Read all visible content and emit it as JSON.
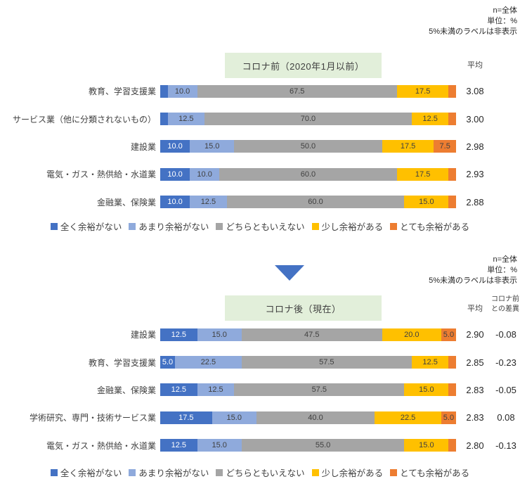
{
  "meta_notes": {
    "n": "n=全体",
    "unit": "単位：%",
    "label_rule": "5%未満のラベルは非表示"
  },
  "legend_items": [
    {
      "label": "全く余裕がない",
      "color": "#4472C4"
    },
    {
      "label": "あまり余裕がない",
      "color": "#8FAADC"
    },
    {
      "label": "どちらともいえない",
      "color": "#A5A5A5"
    },
    {
      "label": "少し余裕がある",
      "color": "#FFC000"
    },
    {
      "label": "とても余裕がある",
      "color": "#ED7D31"
    }
  ],
  "arrow_color": "#4472C4",
  "title_box_bg": "#E2EFDA",
  "label_visibility_threshold": 5,
  "chart_data": [
    {
      "type": "bar",
      "stacked": true,
      "orientation": "horizontal",
      "title": "コロナ前（2020年1月以前）",
      "avg_header": "平均",
      "unit": "%",
      "xlim": [
        0,
        100
      ],
      "series_names": [
        "全く余裕がない",
        "あまり余裕がない",
        "どちらともいえない",
        "少し余裕がある",
        "とても余裕がある"
      ],
      "rows": [
        {
          "category": "教育、学習支援業",
          "values": [
            2.5,
            10.0,
            67.5,
            17.5,
            2.5
          ],
          "average": "3.08"
        },
        {
          "category": "サービス業（他に分類されないもの）",
          "values": [
            2.5,
            12.5,
            70.0,
            12.5,
            2.5
          ],
          "average": "3.00"
        },
        {
          "category": "建設業",
          "values": [
            10.0,
            15.0,
            50.0,
            17.5,
            7.5
          ],
          "average": "2.98"
        },
        {
          "category": "電気・ガス・熱供給・水道業",
          "values": [
            10.0,
            10.0,
            60.0,
            17.5,
            2.5
          ],
          "average": "2.93"
        },
        {
          "category": "金融業、保険業",
          "values": [
            10.0,
            12.5,
            60.0,
            15.0,
            2.5
          ],
          "average": "2.88"
        }
      ]
    },
    {
      "type": "bar",
      "stacked": true,
      "orientation": "horizontal",
      "title": "コロナ後（現在）",
      "avg_header": "平均",
      "diff_header_line1": "コロナ前",
      "diff_header_line2": "との差異",
      "unit": "%",
      "xlim": [
        0,
        100
      ],
      "series_names": [
        "全く余裕がない",
        "あまり余裕がない",
        "どちらともいえない",
        "少し余裕がある",
        "とても余裕がある"
      ],
      "rows": [
        {
          "category": "建設業",
          "values": [
            12.5,
            15.0,
            47.5,
            20.0,
            5.0
          ],
          "average": "2.90",
          "diff": "-0.08"
        },
        {
          "category": "教育、学習支援業",
          "values": [
            5.0,
            22.5,
            57.5,
            12.5,
            2.5
          ],
          "average": "2.85",
          "diff": "-0.23"
        },
        {
          "category": "金融業、保険業",
          "values": [
            12.5,
            12.5,
            57.5,
            15.0,
            2.5
          ],
          "average": "2.83",
          "diff": "-0.05"
        },
        {
          "category": "学術研究、専門・技術サービス業",
          "values": [
            17.5,
            15.0,
            40.0,
            22.5,
            5.0
          ],
          "average": "2.83",
          "diff": "0.08"
        },
        {
          "category": "電気・ガス・熱供給・水道業",
          "values": [
            12.5,
            15.0,
            55.0,
            15.0,
            2.5
          ],
          "average": "2.80",
          "diff": "-0.13"
        }
      ]
    }
  ]
}
